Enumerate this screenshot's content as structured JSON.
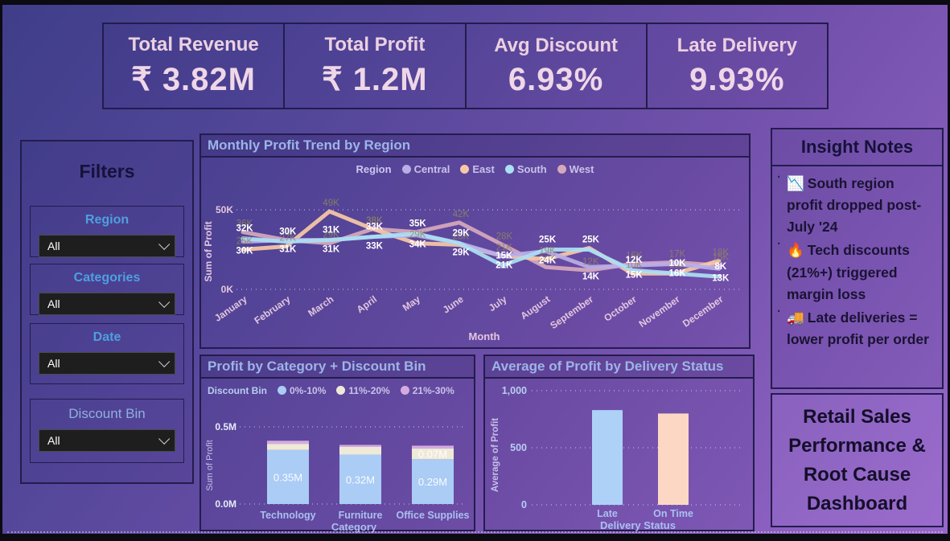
{
  "kpis": [
    {
      "label": "Total Revenue",
      "value": "₹ 3.82M"
    },
    {
      "label": "Total Profit",
      "value": "₹ 1.2M"
    },
    {
      "label": "Avg Discount",
      "value": "6.93%"
    },
    {
      "label": "Late Delivery",
      "value": "9.93%"
    }
  ],
  "filters": {
    "title": "Filters",
    "items": [
      {
        "label": "Region",
        "value": "All"
      },
      {
        "label": "Categories",
        "value": "All"
      },
      {
        "label": "Date",
        "value": "All"
      },
      {
        "label": "Discount Bin",
        "value": "All"
      }
    ]
  },
  "insights": {
    "title": "Insight Notes",
    "notes": [
      {
        "icon": "📉",
        "text": "South region profit dropped post-July '24"
      },
      {
        "icon": "🔥",
        "text": "Tech discounts (21%+) triggered margin loss"
      },
      {
        "icon": "🚚",
        "text": "Late deliveries = lower profit per order"
      }
    ]
  },
  "dashboard_title": "Retail Sales Performance & Root Cause Dashboard",
  "chart_data": [
    {
      "type": "line",
      "title": "Monthly Profit Trend by Region",
      "legend_title": "Region",
      "x": [
        "January",
        "February",
        "March",
        "April",
        "May",
        "June",
        "July",
        "August",
        "September",
        "October",
        "November",
        "December"
      ],
      "xlabel": "Month",
      "ylabel": "Sum of Profit",
      "ylim": [
        0,
        50000
      ],
      "yticks": [
        {
          "value": 0,
          "label": "0K"
        },
        {
          "value": 50,
          "label": "50K"
        }
      ],
      "unit": "K",
      "grid": "dotted",
      "legend_position": "top",
      "series": [
        {
          "name": "Central",
          "color": "#b9aee8",
          "label_color": "#ffffff",
          "values": [
            30,
            31,
            31,
            33,
            34,
            29,
            21,
            24,
            14,
            15,
            16,
            13
          ]
        },
        {
          "name": "East",
          "color": "#f6c8a6",
          "label_color": "#8f8660",
          "values": [
            25,
            27,
            49,
            38,
            29,
            28,
            21,
            19,
            26,
            10,
            10,
            18
          ]
        },
        {
          "name": "South",
          "color": "#abdff2",
          "label_color": "#ffffff",
          "values": [
            32,
            30,
            31,
            33,
            35,
            29,
            15,
            25,
            25,
            12,
            10,
            8
          ]
        },
        {
          "name": "West",
          "color": "#d5a8bc",
          "label_color": "#8f8660",
          "values": [
            36,
            31,
            29,
            38,
            36,
            42,
            28,
            14,
            12,
            16,
            17,
            15
          ]
        }
      ]
    },
    {
      "type": "stacked-bar",
      "title": "Profit by Category + Discount Bin",
      "legend_title": "Discount Bin",
      "categories": [
        "Technology",
        "Furniture",
        "Office Supplies"
      ],
      "xlabel": "Category",
      "ylabel": "Sum of Profit",
      "ylim": [
        0,
        0.5
      ],
      "yticks": [
        {
          "value": 0,
          "label": "0.0M"
        },
        {
          "value": 0.5,
          "label": "0.5M"
        }
      ],
      "grid": "dotted",
      "series": [
        {
          "name": "0%-10%",
          "color": "#aaccf5",
          "values": [
            0.35,
            0.32,
            0.29
          ]
        },
        {
          "name": "11%-20%",
          "color": "#efe9d8",
          "values": [
            0.04,
            0.05,
            0.07
          ]
        },
        {
          "name": "21%-30%",
          "color": "#d5abdf",
          "values": [
            0.02,
            0.013,
            0.018
          ]
        }
      ],
      "segment_labels": [
        [
          "0.35M",
          "0.32M",
          "0.29M"
        ],
        [
          null,
          null,
          "0.07M"
        ],
        [
          null,
          null,
          null
        ]
      ]
    },
    {
      "type": "bar",
      "title": "Average of Profit by Delivery Status",
      "categories": [
        "Late",
        "On Time"
      ],
      "values": [
        830,
        800
      ],
      "colors": [
        "#aed1f7",
        "#fcd8c4"
      ],
      "xlabel": "Delivery Status",
      "ylabel": "Average of Profit",
      "ylim": [
        0,
        1000
      ],
      "yticks": [
        {
          "value": 0,
          "label": "0"
        },
        {
          "value": 500,
          "label": "500"
        },
        {
          "value": 1000,
          "label": "1,000"
        }
      ],
      "grid": "dotted"
    }
  ]
}
